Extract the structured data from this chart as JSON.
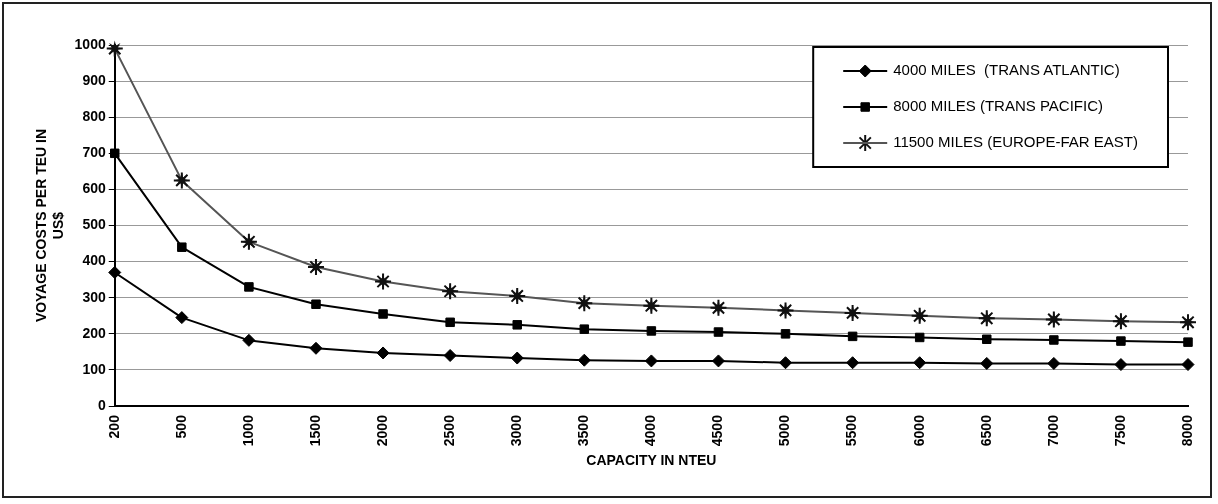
{
  "chart_data": {
    "type": "line",
    "xlabel": "CAPACITY IN NTEU",
    "ylabel": "VOYAGE COSTS PER TEU IN US$",
    "categories": [
      "200",
      "500",
      "1000",
      "1500",
      "2000",
      "2500",
      "3000",
      "3500",
      "4000",
      "4500",
      "5000",
      "5500",
      "6000",
      "6500",
      "7000",
      "7500",
      "8000"
    ],
    "series": [
      {
        "name": "4000 MILES  (TRANS ATLANTIC)",
        "color": "#000000",
        "marker": "diamond",
        "values": [
          370,
          245,
          182,
          160,
          147,
          140,
          133,
          127,
          125,
          125,
          120,
          120,
          120,
          118,
          118,
          115,
          115
        ]
      },
      {
        "name": "8000 MILES (TRANS PACIFIC)",
        "color": "#000000",
        "marker": "square",
        "values": [
          700,
          440,
          330,
          282,
          255,
          232,
          225,
          213,
          208,
          205,
          200,
          193,
          190,
          185,
          183,
          180,
          177
        ]
      },
      {
        "name": "11500 MILES (EUROPE-FAR EAST)",
        "color": "#555555",
        "marker": "star",
        "values": [
          990,
          625,
          455,
          385,
          345,
          318,
          305,
          285,
          278,
          272,
          265,
          258,
          250,
          243,
          240,
          235,
          232
        ]
      }
    ],
    "ylim": [
      0,
      1000
    ],
    "yticks": [
      0,
      100,
      200,
      300,
      400,
      500,
      600,
      700,
      800,
      900,
      1000
    ],
    "grid": "y",
    "legend": "top right",
    "line_style": "solid"
  }
}
